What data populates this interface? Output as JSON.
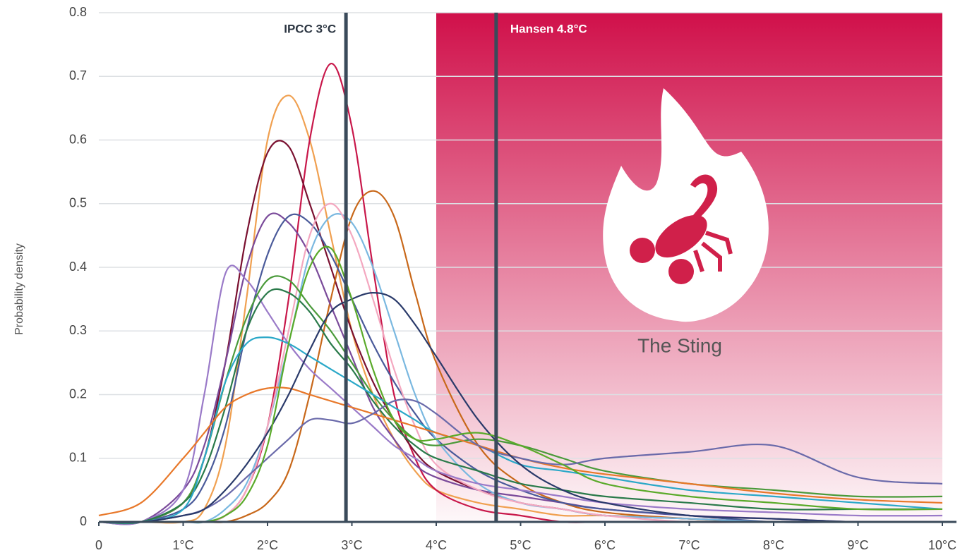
{
  "chart_data": {
    "type": "line",
    "y_label": "Probability density",
    "x": [
      0,
      0.5,
      1,
      1.25,
      1.5,
      1.75,
      2,
      2.25,
      2.5,
      2.75,
      3,
      3.25,
      3.5,
      3.75,
      4,
      4.5,
      5,
      5.5,
      6,
      7,
      8,
      9,
      10
    ],
    "xlim": [
      0,
      10
    ],
    "xticks": [
      0,
      {
        "value": 1,
        "label": "1°C"
      },
      {
        "value": 2,
        "label": "2°C"
      },
      {
        "value": 3,
        "label": "3°C"
      },
      {
        "value": 4,
        "label": "4°C"
      },
      {
        "value": 5,
        "label": "5°C"
      },
      {
        "value": 6,
        "label": "6°C"
      },
      {
        "value": 7,
        "label": "7°C"
      },
      {
        "value": 8,
        "label": "8°C"
      },
      {
        "value": 9,
        "label": "9°C"
      },
      {
        "value": 10,
        "label": "10°C"
      }
    ],
    "ylim": [
      0,
      0.8
    ],
    "yticks": [
      0,
      0.1,
      0.2,
      0.3,
      0.4,
      0.5,
      0.6,
      0.7,
      0.8
    ],
    "grid": true,
    "region": {
      "label": "The Sting",
      "x": [
        4,
        10
      ],
      "color": "#d0104a"
    },
    "annotations": [
      {
        "label": "IPCC 3°C",
        "x": 2.93
      },
      {
        "label": "Hansen 4.8°C",
        "x": 4.71
      }
    ],
    "series": [
      {
        "color": "#f0a050",
        "values": [
          0,
          0,
          0,
          0.02,
          0.12,
          0.35,
          0.6,
          0.67,
          0.6,
          0.45,
          0.3,
          0.2,
          0.13,
          0.08,
          0.05,
          0.03,
          0.02,
          0.01,
          0.01,
          0.005,
          0,
          0,
          0
        ]
      },
      {
        "color": "#c8174a",
        "values": [
          0,
          0,
          0,
          0,
          0.01,
          0.05,
          0.15,
          0.35,
          0.6,
          0.72,
          0.62,
          0.4,
          0.2,
          0.1,
          0.05,
          0.02,
          0.01,
          0,
          0,
          0,
          0,
          0,
          0
        ]
      },
      {
        "color": "#7a1030",
        "values": [
          0,
          0,
          0.03,
          0.1,
          0.25,
          0.45,
          0.58,
          0.59,
          0.5,
          0.4,
          0.3,
          0.22,
          0.16,
          0.11,
          0.08,
          0.05,
          0.03,
          0.02,
          0.01,
          0.005,
          0,
          0,
          0
        ]
      },
      {
        "color": "#c8681a",
        "values": [
          0,
          0,
          0,
          0,
          0,
          0.01,
          0.03,
          0.08,
          0.2,
          0.35,
          0.48,
          0.52,
          0.48,
          0.36,
          0.25,
          0.12,
          0.06,
          0.03,
          0.015,
          0.005,
          0,
          0,
          0
        ]
      },
      {
        "color": "#7a4a9a",
        "values": [
          0,
          0,
          0.05,
          0.12,
          0.25,
          0.4,
          0.48,
          0.47,
          0.42,
          0.34,
          0.26,
          0.18,
          0.13,
          0.09,
          0.07,
          0.05,
          0.04,
          0.03,
          0.02,
          0.01,
          0.005,
          0,
          0
        ]
      },
      {
        "color": "#4a5a9a",
        "values": [
          0,
          0,
          0.02,
          0.06,
          0.15,
          0.3,
          0.42,
          0.48,
          0.47,
          0.42,
          0.35,
          0.28,
          0.22,
          0.17,
          0.13,
          0.08,
          0.05,
          0.03,
          0.02,
          0.01,
          0,
          0,
          0
        ]
      },
      {
        "color": "#7ab8e0",
        "values": [
          0,
          0,
          0,
          0,
          0.02,
          0.06,
          0.15,
          0.28,
          0.42,
          0.48,
          0.47,
          0.4,
          0.3,
          0.2,
          0.13,
          0.06,
          0.03,
          0.02,
          0.01,
          0.005,
          0,
          0,
          0
        ]
      },
      {
        "color": "#f4a8c0",
        "values": [
          0,
          0,
          0,
          0,
          0.01,
          0.05,
          0.15,
          0.3,
          0.45,
          0.5,
          0.45,
          0.35,
          0.24,
          0.15,
          0.09,
          0.05,
          0.03,
          0.02,
          0.01,
          0,
          0,
          0,
          0
        ]
      },
      {
        "color": "#9a7ac8",
        "values": [
          0,
          0,
          0.05,
          0.2,
          0.39,
          0.38,
          0.33,
          0.28,
          0.24,
          0.21,
          0.18,
          0.15,
          0.12,
          0.1,
          0.08,
          0.06,
          0.05,
          0.04,
          0.03,
          0.02,
          0.015,
          0.01,
          0.01
        ]
      },
      {
        "color": "#4a9a3a",
        "values": [
          0,
          0,
          0.03,
          0.1,
          0.22,
          0.32,
          0.38,
          0.38,
          0.34,
          0.3,
          0.25,
          0.2,
          0.16,
          0.13,
          0.12,
          0.13,
          0.12,
          0.1,
          0.08,
          0.06,
          0.05,
          0.04,
          0.04
        ]
      },
      {
        "color": "#2a7a4a",
        "values": [
          0,
          0,
          0.03,
          0.08,
          0.18,
          0.3,
          0.36,
          0.36,
          0.33,
          0.28,
          0.24,
          0.19,
          0.15,
          0.12,
          0.1,
          0.08,
          0.06,
          0.05,
          0.04,
          0.03,
          0.02,
          0.02,
          0.02
        ]
      },
      {
        "color": "#2aa8c8",
        "values": [
          0,
          0,
          0.02,
          0.1,
          0.22,
          0.28,
          0.29,
          0.28,
          0.26,
          0.24,
          0.22,
          0.2,
          0.18,
          0.16,
          0.14,
          0.12,
          0.09,
          0.08,
          0.07,
          0.05,
          0.04,
          0.03,
          0.02
        ]
      },
      {
        "color": "#e8782a",
        "values": [
          0.01,
          0.03,
          0.1,
          0.14,
          0.18,
          0.2,
          0.21,
          0.21,
          0.2,
          0.19,
          0.18,
          0.17,
          0.16,
          0.15,
          0.14,
          0.12,
          0.1,
          0.085,
          0.075,
          0.06,
          0.045,
          0.035,
          0.03
        ]
      },
      {
        "color": "#6a6aaa",
        "values": [
          0,
          0,
          0.01,
          0.02,
          0.04,
          0.07,
          0.1,
          0.13,
          0.16,
          0.16,
          0.155,
          0.17,
          0.19,
          0.19,
          0.17,
          0.12,
          0.1,
          0.09,
          0.1,
          0.11,
          0.12,
          0.07,
          0.06
        ]
      },
      {
        "color": "#2a3a6a",
        "values": [
          0,
          0,
          0.01,
          0.02,
          0.05,
          0.09,
          0.14,
          0.2,
          0.27,
          0.33,
          0.35,
          0.36,
          0.35,
          0.31,
          0.26,
          0.16,
          0.09,
          0.05,
          0.03,
          0.01,
          0.005,
          0,
          0
        ]
      },
      {
        "color": "#5aaa2a",
        "values": [
          0,
          0,
          0,
          0,
          0.01,
          0.04,
          0.12,
          0.28,
          0.4,
          0.43,
          0.35,
          0.24,
          0.16,
          0.13,
          0.13,
          0.14,
          0.12,
          0.09,
          0.06,
          0.04,
          0.03,
          0.02,
          0.02
        ]
      }
    ]
  }
}
